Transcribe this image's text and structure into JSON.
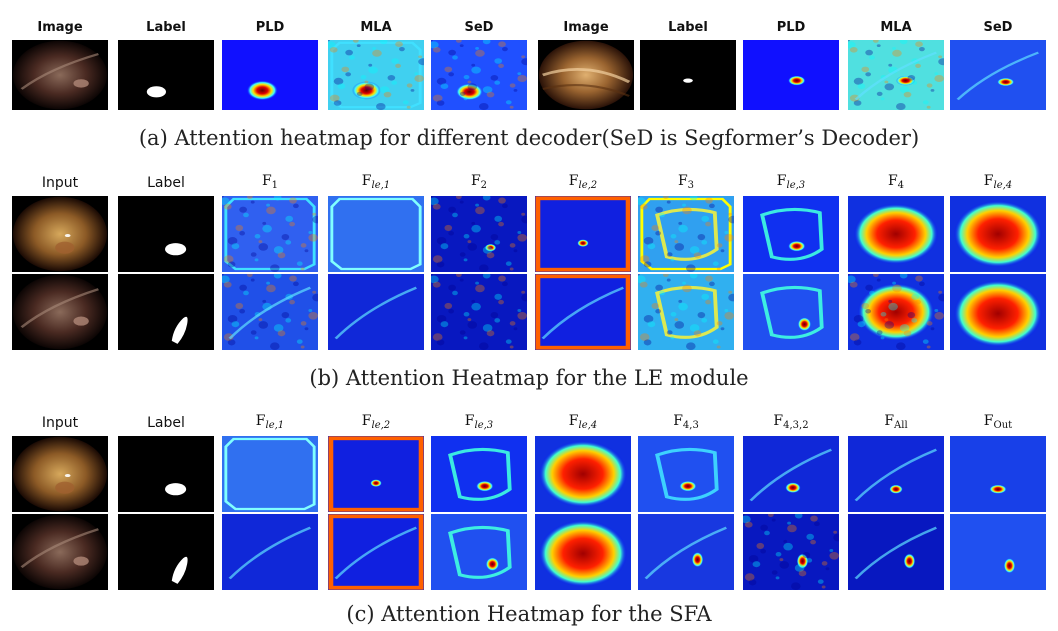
{
  "panel_a": {
    "labels": [
      "Image",
      "Label",
      "PLD",
      "MLA",
      "SeD",
      "Image",
      "Label",
      "PLD",
      "MLA",
      "SeD"
    ],
    "caption": "(a)  Attention heatmap for different decoder(SeD is Segformer’s Decoder)"
  },
  "panel_b": {
    "plain_labels": {
      "input": "Input",
      "label": "Label"
    },
    "math_labels": [
      {
        "base": "F",
        "sub": "1"
      },
      {
        "base": "F",
        "sub": "le,1"
      },
      {
        "base": "F",
        "sub": "2"
      },
      {
        "base": "F",
        "sub": "le,2"
      },
      {
        "base": "F",
        "sub": "3"
      },
      {
        "base": "F",
        "sub": "le,3"
      },
      {
        "base": "F",
        "sub": "4"
      },
      {
        "base": "F",
        "sub": "le,4"
      }
    ],
    "caption": "(b)  Attention Heatmap for the LE module"
  },
  "panel_c": {
    "plain_labels": {
      "input": "Input",
      "label": "Label"
    },
    "math_labels": [
      {
        "base": "F",
        "sub": "le,1"
      },
      {
        "base": "F",
        "sub": "le,2"
      },
      {
        "base": "F",
        "sub": "le,3"
      },
      {
        "base": "F",
        "sub": "le,4"
      },
      {
        "base": "F",
        "sub": "4,3"
      },
      {
        "base": "F",
        "sub": "4,3,2"
      },
      {
        "base": "F",
        "sub": "All"
      },
      {
        "base": "F",
        "sub": "Out"
      }
    ],
    "caption": "(c)  Attention Heatmap for the SFA"
  },
  "colors": {
    "jet_low": "#0a1ad8",
    "jet_mid": "#38d0f0",
    "jet_high": "#e01010",
    "endo_dark": "#2a140c",
    "endo_light": "#b07a48"
  }
}
